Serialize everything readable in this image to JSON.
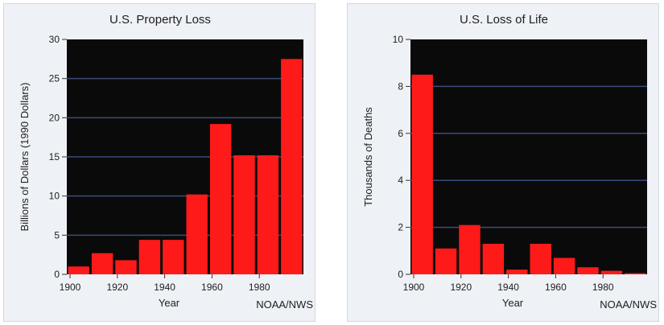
{
  "chart_data": [
    {
      "type": "bar",
      "title": "U.S. Property Loss",
      "xlabel": "Year",
      "ylabel": "Billions of Dollars (1990 Dollars)",
      "credit": "NOAA/NWS",
      "ylim": [
        0,
        30
      ],
      "yticks": [
        0,
        5,
        10,
        15,
        20,
        25,
        30
      ],
      "xtick_labels": [
        "1900",
        "1920",
        "1940",
        "1960",
        "1980"
      ],
      "categories": [
        "1900s",
        "1910s",
        "1920s",
        "1930s",
        "1940s",
        "1950s",
        "1960s",
        "1970s",
        "1980s",
        "1990s"
      ],
      "values": [
        1.0,
        2.7,
        1.8,
        4.4,
        4.4,
        10.2,
        19.2,
        15.2,
        15.2,
        27.5
      ],
      "bar_color": "#ff1a1a",
      "plot_background": "#0a0a0a",
      "grid": true,
      "grid_color": "#3a4b7a"
    },
    {
      "type": "bar",
      "title": "U.S. Loss of Life",
      "xlabel": "Year",
      "ylabel": "Thousands of Deaths",
      "credit": "NOAA/NWS",
      "ylim": [
        0,
        10
      ],
      "yticks": [
        0,
        2,
        4,
        6,
        8,
        10
      ],
      "xtick_labels": [
        "1900",
        "1920",
        "1940",
        "1960",
        "1980"
      ],
      "categories": [
        "1900s",
        "1910s",
        "1920s",
        "1930s",
        "1940s",
        "1950s",
        "1960s",
        "1970s",
        "1980s",
        "1990s"
      ],
      "values": [
        8.5,
        1.1,
        2.1,
        1.3,
        0.2,
        1.3,
        0.7,
        0.3,
        0.15,
        0.05
      ],
      "bar_color": "#ff1a1a",
      "plot_background": "#0a0a0a",
      "grid": true,
      "grid_color": "#3a4b7a"
    }
  ]
}
